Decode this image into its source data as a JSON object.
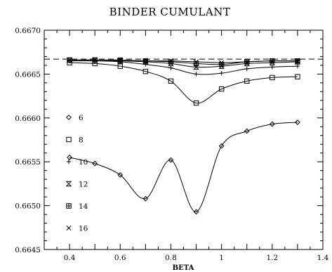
{
  "chart_data": {
    "type": "line",
    "title": "BINDER CUMULANT",
    "xlabel": "BETA",
    "ylabel": "",
    "xlim": [
      0.3,
      1.4
    ],
    "ylim": [
      0.6645,
      0.667
    ],
    "x_ticks": [
      0.4,
      0.6,
      0.8,
      1,
      1.2,
      1.4
    ],
    "x_tick_labels": [
      "0.4",
      "0.6",
      "0.8",
      "1",
      "1.2",
      "1.4"
    ],
    "y_ticks": [
      0.6645,
      0.665,
      0.6655,
      0.666,
      0.6665,
      0.667
    ],
    "y_tick_labels": [
      "0.6645",
      "0.6650",
      "0.6655",
      "0.6660",
      "0.6665",
      "0.6670"
    ],
    "reference_line": {
      "y": 0.66667,
      "style": "dashed"
    },
    "legend_position": "left",
    "series": [
      {
        "name": "6",
        "marker": "diamond",
        "x": [
          0.4,
          0.5,
          0.6,
          0.7,
          0.8,
          0.9,
          1.0,
          1.1,
          1.2,
          1.3
        ],
        "y": [
          0.66555,
          0.66548,
          0.66535,
          0.66508,
          0.66552,
          0.66493,
          0.66568,
          0.66585,
          0.66593,
          0.66595
        ]
      },
      {
        "name": "8",
        "marker": "square",
        "x": [
          0.4,
          0.5,
          0.6,
          0.7,
          0.8,
          0.9,
          1.0,
          1.1,
          1.2,
          1.3
        ],
        "y": [
          0.66663,
          0.66662,
          0.66659,
          0.66653,
          0.66642,
          0.66617,
          0.66633,
          0.66642,
          0.66646,
          0.66647
        ]
      },
      {
        "name": "10",
        "marker": "plus",
        "x": [
          0.4,
          0.5,
          0.6,
          0.7,
          0.8,
          0.9,
          1.0,
          1.1,
          1.2,
          1.3
        ],
        "y": [
          0.66665,
          0.66665,
          0.66664,
          0.66661,
          0.66657,
          0.6665,
          0.66651,
          0.66656,
          0.66658,
          0.66659
        ]
      },
      {
        "name": "12",
        "marker": "hourglass",
        "x": [
          0.4,
          0.5,
          0.6,
          0.7,
          0.8,
          0.9,
          1.0,
          1.1,
          1.2,
          1.3
        ],
        "y": [
          0.66666,
          0.66666,
          0.66665,
          0.66664,
          0.66662,
          0.66658,
          0.66659,
          0.66662,
          0.66663,
          0.66664
        ]
      },
      {
        "name": "14",
        "marker": "boxplus",
        "x": [
          0.4,
          0.5,
          0.6,
          0.7,
          0.8,
          0.9,
          1.0,
          1.1,
          1.2,
          1.3
        ],
        "y": [
          0.66666,
          0.66666,
          0.66666,
          0.66665,
          0.66664,
          0.66662,
          0.66661,
          0.66664,
          0.66665,
          0.66665
        ]
      },
      {
        "name": "16",
        "marker": "cross",
        "x": [
          0.4,
          0.5,
          0.6,
          0.7,
          0.8,
          0.9,
          1.0,
          1.1,
          1.2,
          1.3
        ],
        "y": [
          0.66666,
          0.66666,
          0.66666,
          0.66665,
          0.66665,
          0.66664,
          0.66663,
          0.66664,
          0.66665,
          0.66665
        ]
      }
    ]
  }
}
